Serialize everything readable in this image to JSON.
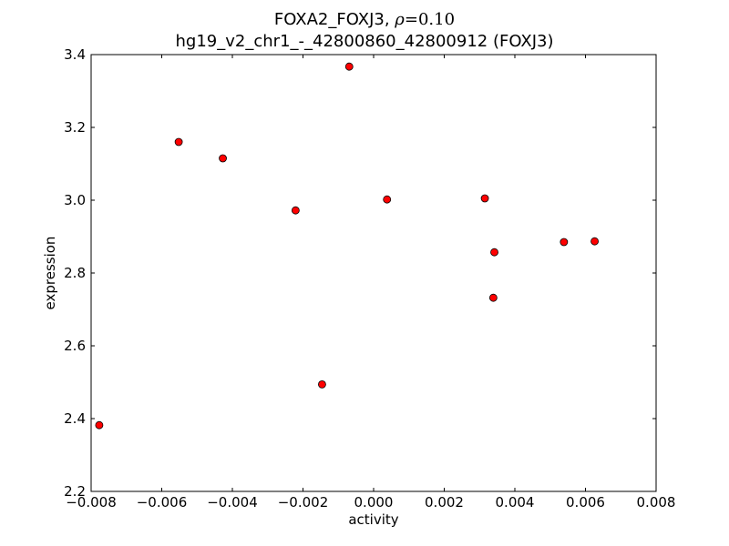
{
  "chart_data": {
    "type": "scatter",
    "title_line1_prefix": "FOXA2_FOXJ3, ",
    "title_rho_symbol": "ρ",
    "title_rho_value": "=0.10",
    "title_line2": "hg19_v2_chr1_-_42800860_42800912 (FOXJ3)",
    "xlabel": "activity",
    "ylabel": "expression",
    "xlim": [
      -0.008,
      0.008
    ],
    "ylim": [
      2.2,
      3.4
    ],
    "xticks": [
      -0.008,
      -0.006,
      -0.004,
      -0.002,
      0.0,
      0.002,
      0.004,
      0.006,
      0.008
    ],
    "xtick_labels": [
      "−0.008",
      "−0.006",
      "−0.004",
      "−0.002",
      "0.000",
      "0.002",
      "0.004",
      "0.006",
      "0.008"
    ],
    "yticks": [
      2.2,
      2.4,
      2.6,
      2.8,
      3.0,
      3.2,
      3.4
    ],
    "ytick_labels": [
      "2.2",
      "2.4",
      "2.6",
      "2.8",
      "3.0",
      "3.2",
      "3.4"
    ],
    "grid": false,
    "marker_color": "#ff0000",
    "marker_edge_color": "#000000",
    "points": [
      {
        "x": -0.00777,
        "y": 2.382
      },
      {
        "x": -0.00552,
        "y": 3.16
      },
      {
        "x": -0.00427,
        "y": 3.115
      },
      {
        "x": -0.00221,
        "y": 2.972
      },
      {
        "x": -0.00146,
        "y": 2.494
      },
      {
        "x": -0.00069,
        "y": 3.367
      },
      {
        "x": 0.00038,
        "y": 3.002
      },
      {
        "x": 0.00315,
        "y": 3.005
      },
      {
        "x": 0.00339,
        "y": 2.732
      },
      {
        "x": 0.00342,
        "y": 2.857
      },
      {
        "x": 0.00539,
        "y": 2.885
      },
      {
        "x": 0.00626,
        "y": 2.887
      }
    ]
  }
}
